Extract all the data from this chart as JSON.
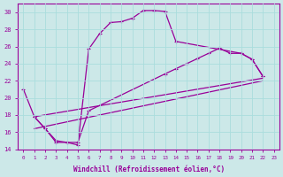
{
  "xlabel": "Windchill (Refroidissement éolien,°C)",
  "bg_color": "#cce8e8",
  "line_color": "#990099",
  "grid_color": "#aadddd",
  "xlim": [
    -0.5,
    23.5
  ],
  "ylim": [
    14,
    31
  ],
  "yticks": [
    14,
    16,
    18,
    20,
    22,
    24,
    26,
    28,
    30
  ],
  "xticks": [
    0,
    1,
    2,
    3,
    4,
    5,
    6,
    7,
    8,
    9,
    10,
    11,
    12,
    13,
    14,
    15,
    16,
    17,
    18,
    19,
    20,
    21,
    22,
    23
  ],
  "line1_x": [
    0,
    1,
    2,
    3,
    4,
    5,
    6,
    7,
    8,
    9,
    10,
    11,
    12,
    13,
    14,
    20,
    21,
    22
  ],
  "line1_y": [
    21.0,
    17.8,
    16.4,
    14.8,
    14.8,
    14.5,
    25.7,
    27.5,
    28.8,
    28.9,
    29.3,
    30.2,
    30.2,
    30.1,
    26.6,
    25.2,
    24.5,
    22.5
  ],
  "line2_x": [
    1,
    2,
    3,
    4,
    5,
    6,
    13,
    14,
    15,
    16,
    17,
    18,
    19,
    20,
    21,
    22
  ],
  "line2_y": [
    17.8,
    16.4,
    15.0,
    14.8,
    14.8,
    18.5,
    22.8,
    23.4,
    24.0,
    24.6,
    25.2,
    25.8,
    25.2,
    25.2,
    24.5,
    22.5
  ],
  "line3_x": [
    1,
    22
  ],
  "line3_y": [
    17.8,
    22.3
  ],
  "line4_x": [
    1,
    22
  ],
  "line4_y": [
    16.4,
    22.0
  ]
}
